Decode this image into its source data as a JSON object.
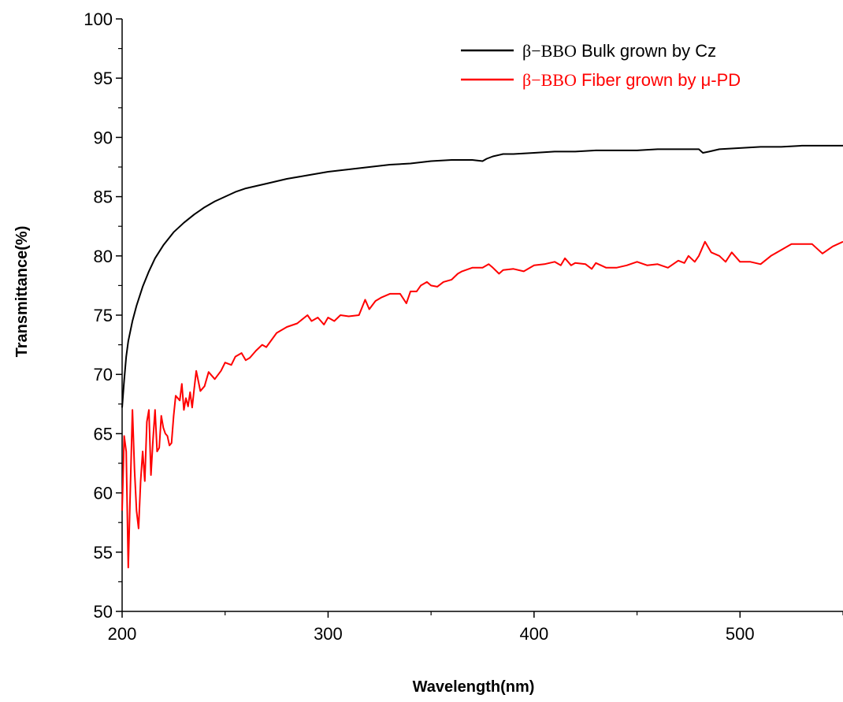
{
  "chart_data": {
    "type": "line",
    "xlabel": "Wavelength(nm)",
    "ylabel": "Transmittance(%)",
    "xlim": [
      200,
      550
    ],
    "ylim": [
      50,
      100
    ],
    "xticks": [
      "200",
      "300",
      "400",
      "500"
    ],
    "yticks": [
      "50",
      "55",
      "60",
      "65",
      "70",
      "75",
      "80",
      "85",
      "90",
      "95",
      "100"
    ],
    "grid": false,
    "legend_position": "top-right",
    "series": [
      {
        "name": "β−BBO Bulk grown by Cz",
        "name_prefix": "β−BBO",
        "name_suffix": " Bulk grown by Cz",
        "color": "#000000",
        "x": [
          200,
          201,
          202,
          203,
          205,
          207,
          210,
          213,
          216,
          220,
          225,
          230,
          235,
          240,
          245,
          250,
          255,
          260,
          265,
          270,
          280,
          290,
          300,
          310,
          320,
          330,
          340,
          350,
          360,
          370,
          375,
          377,
          380,
          385,
          390,
          400,
          410,
          420,
          430,
          440,
          450,
          460,
          470,
          480,
          482,
          485,
          490,
          500,
          510,
          520,
          530,
          540,
          550
        ],
        "y": [
          67.2,
          69.5,
          71.5,
          72.8,
          74.5,
          75.8,
          77.4,
          78.7,
          79.8,
          80.9,
          82.0,
          82.8,
          83.5,
          84.1,
          84.6,
          85.0,
          85.4,
          85.7,
          85.9,
          86.1,
          86.5,
          86.8,
          87.1,
          87.3,
          87.5,
          87.7,
          87.8,
          88.0,
          88.1,
          88.1,
          88.0,
          88.2,
          88.4,
          88.6,
          88.6,
          88.7,
          88.8,
          88.8,
          88.9,
          88.9,
          88.9,
          89.0,
          89.0,
          89.0,
          88.7,
          88.8,
          89.0,
          89.1,
          89.2,
          89.2,
          89.3,
          89.3,
          89.3
        ]
      },
      {
        "name": "β−BBO Fiber grown by μ-PD",
        "name_prefix": "β−BBO",
        "name_suffix": " Fiber grown by μ-PD",
        "color": "#ff0000",
        "x": [
          200,
          201,
          202,
          203,
          204,
          205,
          206,
          207,
          208,
          209,
          210,
          211,
          212,
          213,
          214,
          215,
          216,
          217,
          218,
          219,
          220,
          221,
          222,
          223,
          224,
          225,
          226,
          228,
          229,
          230,
          231,
          232,
          233,
          234,
          235,
          236,
          238,
          240,
          242,
          245,
          248,
          250,
          253,
          255,
          258,
          260,
          262,
          265,
          268,
          270,
          275,
          280,
          285,
          290,
          292,
          295,
          298,
          300,
          303,
          306,
          310,
          315,
          318,
          320,
          323,
          326,
          330,
          335,
          338,
          340,
          343,
          345,
          348,
          350,
          353,
          356,
          360,
          363,
          365,
          370,
          375,
          378,
          380,
          383,
          385,
          390,
          395,
          400,
          405,
          410,
          413,
          415,
          418,
          420,
          425,
          428,
          430,
          435,
          440,
          445,
          450,
          455,
          460,
          465,
          470,
          473,
          475,
          478,
          480,
          483,
          486,
          490,
          493,
          496,
          500,
          505,
          510,
          515,
          520,
          525,
          530,
          535,
          540,
          545,
          550
        ],
        "y": [
          58.5,
          64.8,
          63.5,
          53.7,
          60.5,
          67.0,
          62.0,
          58.5,
          57.0,
          61.0,
          63.5,
          61.0,
          66.0,
          67.0,
          61.5,
          64.5,
          67.0,
          63.5,
          63.8,
          66.5,
          65.5,
          65.0,
          64.8,
          64.0,
          64.2,
          66.5,
          68.2,
          67.8,
          69.2,
          67.0,
          68.0,
          67.3,
          68.5,
          67.2,
          68.8,
          70.3,
          68.6,
          69.0,
          70.2,
          69.6,
          70.3,
          71.0,
          70.8,
          71.5,
          71.8,
          71.2,
          71.4,
          72.0,
          72.5,
          72.3,
          73.5,
          74.0,
          74.3,
          75.0,
          74.5,
          74.8,
          74.2,
          74.8,
          74.5,
          75.0,
          74.9,
          75.0,
          76.3,
          75.5,
          76.2,
          76.5,
          76.8,
          76.8,
          76.0,
          77.0,
          77.0,
          77.5,
          77.8,
          77.5,
          77.4,
          77.8,
          78.0,
          78.5,
          78.7,
          79.0,
          79.0,
          79.3,
          79.0,
          78.5,
          78.8,
          78.9,
          78.7,
          79.2,
          79.3,
          79.5,
          79.2,
          79.8,
          79.2,
          79.4,
          79.3,
          78.9,
          79.4,
          79.0,
          79.0,
          79.2,
          79.5,
          79.2,
          79.3,
          79.0,
          79.6,
          79.4,
          80.0,
          79.5,
          80.0,
          81.2,
          80.3,
          80.0,
          79.5,
          80.3,
          79.5,
          79.5,
          79.3,
          80.0,
          80.5,
          81.0,
          81.0,
          81.0,
          80.2,
          80.8,
          81.2
        ]
      }
    ]
  }
}
